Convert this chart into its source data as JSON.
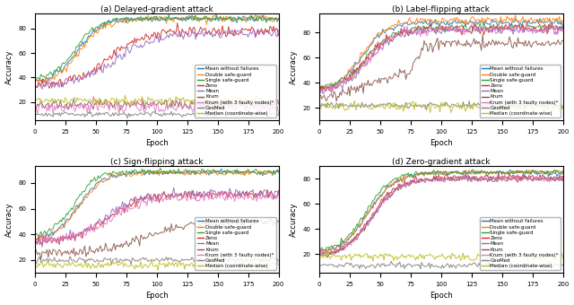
{
  "titles": [
    "(a) Delayed-gradient attack",
    "(b) Label-flipping attack",
    "(c) Sign-flipping attack",
    "(d) Zero-gradient attack"
  ],
  "legend_labels": [
    "Mean without failures",
    "Double safe-guard",
    "Single safe-guard",
    "Zeno",
    "Mean",
    "Krum",
    "Krum (with 3 faulty nodes)*",
    "GeoMed",
    "Median (coordinate-wise)"
  ],
  "colors": [
    "#1f77b4",
    "#ff7f0e",
    "#2ca02c",
    "#d62728",
    "#9467bd",
    "#8c564b",
    "#e377c2",
    "#7f7f7f",
    "#bcbd22"
  ],
  "xlabel": "Epoch",
  "ylabel": "Accuracy",
  "xlim": [
    0,
    200
  ],
  "n_epochs": 201,
  "bg_color": "#ffffff"
}
